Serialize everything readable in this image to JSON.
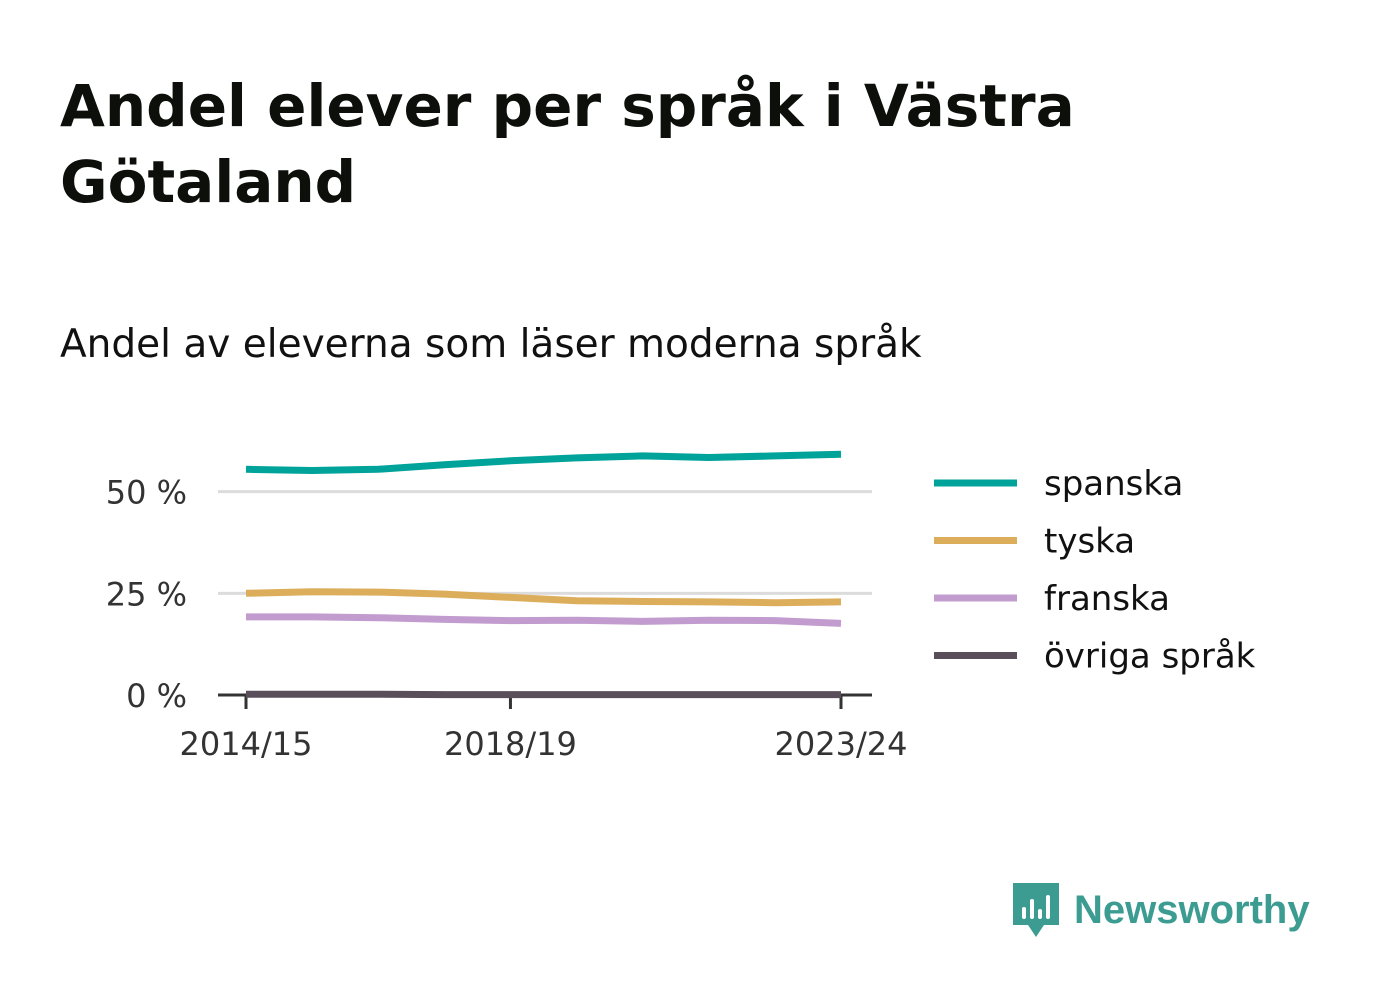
{
  "title": "Andel elever per språk i Västra Götaland",
  "subtitle": "Andel av eleverna som läser moderna språk",
  "brand": {
    "name": "Newsworthy",
    "color": "#3c9c92",
    "icon": "newsworthy-logo-icon"
  },
  "chart_data": {
    "type": "line",
    "x": [
      "2014/15",
      "2015/16",
      "2016/17",
      "2017/18",
      "2018/19",
      "2019/20",
      "2020/21",
      "2021/22",
      "2022/23",
      "2023/24"
    ],
    "x_tick_labels": [
      "2014/15",
      "2018/19",
      "2023/24"
    ],
    "y_ticks": [
      0,
      25,
      50
    ],
    "y_tick_labels": [
      "0 %",
      "25 %",
      "50 %"
    ],
    "ylim": [
      0,
      60
    ],
    "grid": true,
    "legend_position": "right",
    "series": [
      {
        "name": "spanska",
        "color": "#00a39a",
        "values": [
          55.5,
          55.2,
          55.5,
          56.6,
          57.6,
          58.3,
          58.8,
          58.4,
          58.8,
          59.2
        ]
      },
      {
        "name": "tyska",
        "color": "#dcae5c",
        "values": [
          25.0,
          25.4,
          25.3,
          24.8,
          24.0,
          23.2,
          23.0,
          22.9,
          22.7,
          22.9
        ]
      },
      {
        "name": "franska",
        "color": "#c39ccf",
        "values": [
          19.2,
          19.2,
          19.0,
          18.6,
          18.3,
          18.4,
          18.1,
          18.4,
          18.3,
          17.6
        ]
      },
      {
        "name": "övriga språk",
        "color": "#5b4e5b",
        "values": [
          0.2,
          0.2,
          0.2,
          0.1,
          0.1,
          0.1,
          0.1,
          0.1,
          0.1,
          0.1
        ]
      }
    ]
  }
}
